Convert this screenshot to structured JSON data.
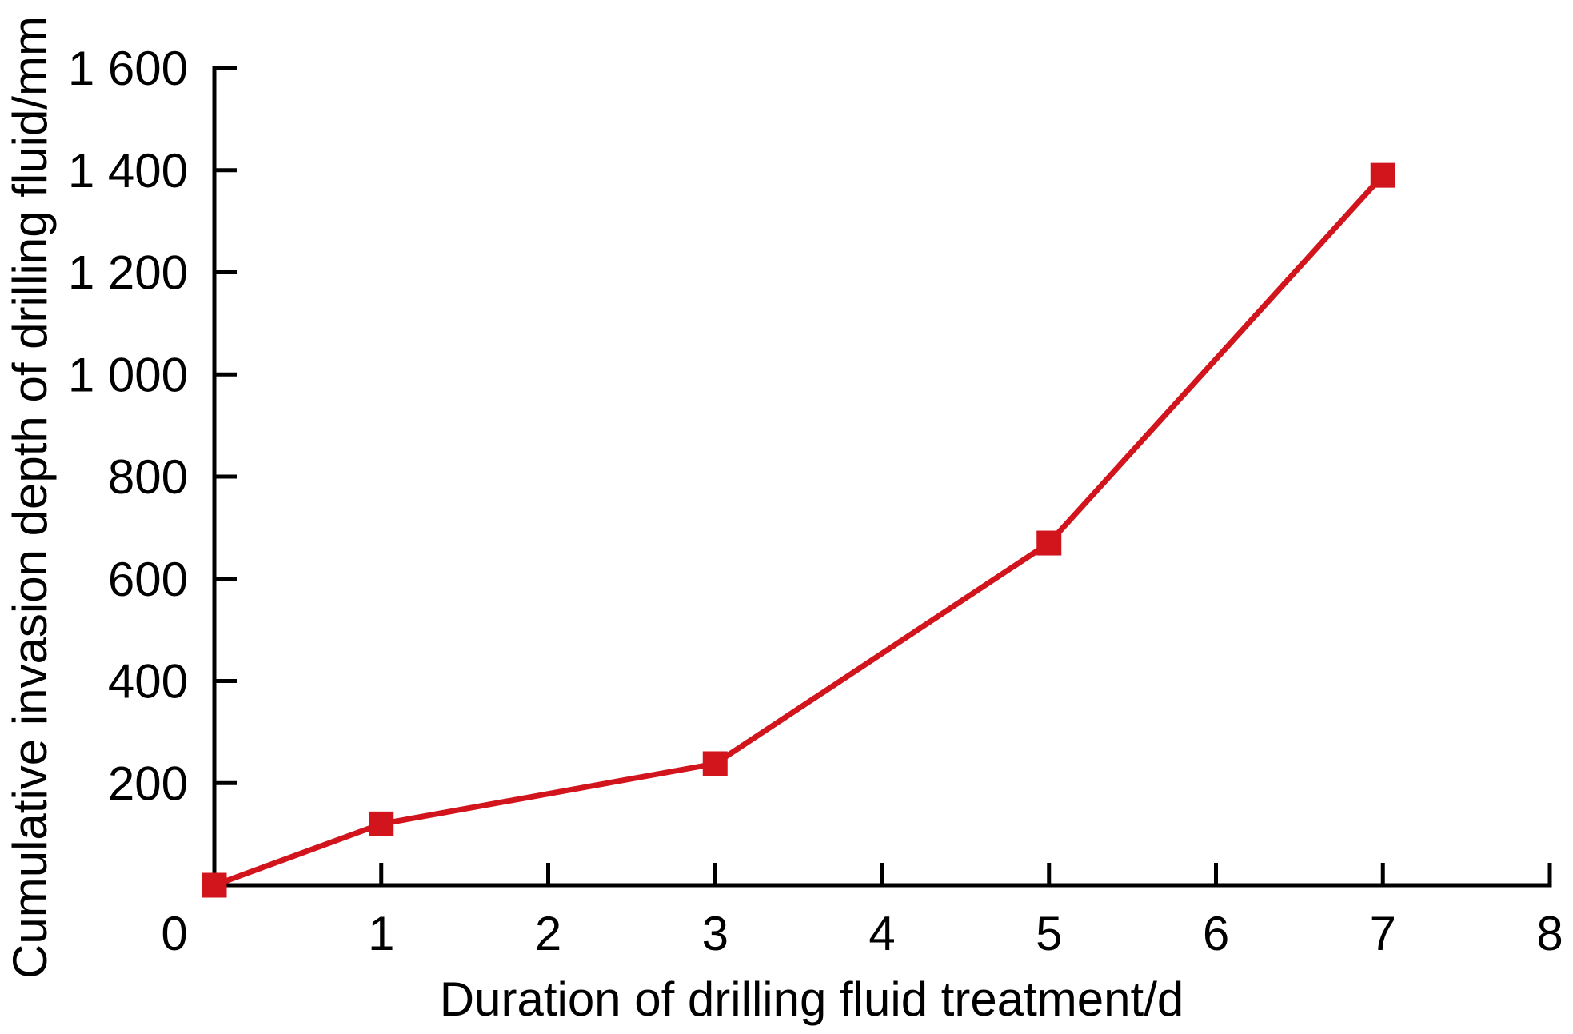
{
  "figure": {
    "background": "#ffffff"
  },
  "chart_data": {
    "type": "line",
    "title": "",
    "xlabel": "Duration of drilling fluid treatment/d",
    "ylabel": "Cumulative invasion depth of drilling fluid/mm",
    "series": [
      {
        "name": "Cumulative invasion depth of drilling fluid",
        "x": [
          0,
          1,
          3,
          5,
          7
        ],
        "y": [
          0,
          120,
          238,
          670,
          1390
        ],
        "color": "#d2141d",
        "marker": "square",
        "line_style": "solid"
      }
    ],
    "xlim": [
      0,
      8
    ],
    "ylim": [
      0,
      1600
    ],
    "x_ticks": {
      "values": [
        0,
        1,
        2,
        3,
        4,
        5,
        6,
        7,
        8
      ],
      "labels": [
        "0",
        "1",
        "2",
        "3",
        "4",
        "5",
        "6",
        "7",
        "8"
      ]
    },
    "y_ticks": {
      "values": [
        200,
        400,
        600,
        800,
        1000,
        1200,
        1400,
        1600
      ],
      "labels": [
        "200",
        "400",
        "600",
        "800",
        "1 000",
        "1 200",
        "1 400",
        "1 600"
      ]
    },
    "grid": false,
    "legend": "none",
    "axis_color": "#000000"
  }
}
